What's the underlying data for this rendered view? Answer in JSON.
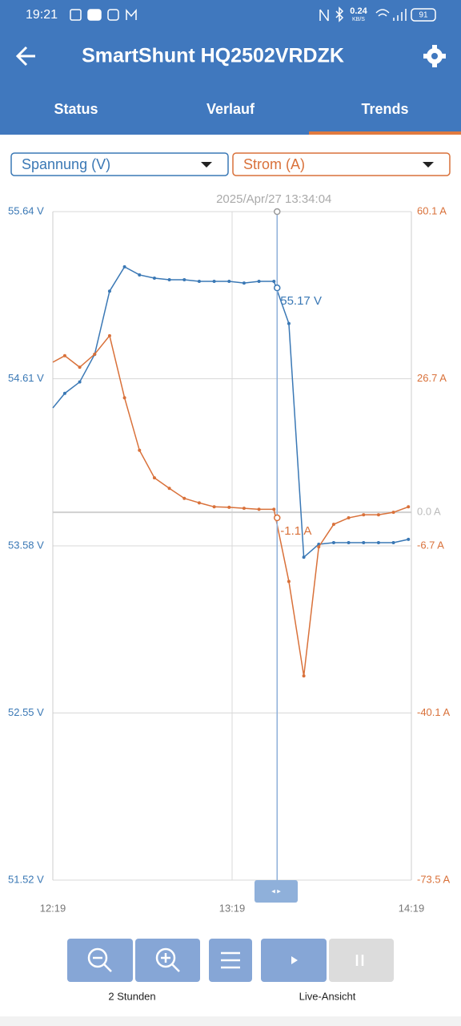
{
  "status_bar": {
    "time": "19:21",
    "speed": "0.24",
    "speed_unit": "KB/S",
    "battery": "91"
  },
  "app_bar": {
    "title": "SmartShunt HQ2502VRDZK"
  },
  "tabs": [
    "Status",
    "Verlauf",
    "Trends"
  ],
  "chart_data": {
    "type": "line",
    "x": [
      "12:19",
      "12:23",
      "12:28",
      "12:33",
      "12:38",
      "12:43",
      "12:48",
      "12:53",
      "12:58",
      "13:03",
      "13:08",
      "13:13",
      "13:18",
      "13:23",
      "13:28",
      "13:33",
      "13:38",
      "13:43",
      "13:48",
      "13:53",
      "13:58",
      "14:03",
      "14:08",
      "14:13",
      "14:18"
    ],
    "series": [
      {
        "name": "Spannung (V)",
        "color": "#3a78b5",
        "values": [
          54.43,
          54.52,
          54.59,
          54.76,
          55.15,
          55.3,
          55.25,
          55.23,
          55.22,
          55.22,
          55.21,
          55.21,
          55.21,
          55.2,
          55.21,
          55.21,
          54.95,
          53.51,
          53.59,
          53.6,
          53.6,
          53.6,
          53.6,
          53.6,
          53.62
        ]
      },
      {
        "name": "Strom (A)",
        "color": "#d9713a",
        "axis": "y2",
        "values": [
          30.0,
          31.3,
          29.0,
          31.6,
          35.3,
          22.9,
          12.4,
          6.9,
          4.8,
          2.8,
          1.9,
          1.1,
          1.0,
          0.8,
          0.6,
          0.6,
          -13.8,
          -32.7,
          -6.9,
          -2.4,
          -1.1,
          -0.5,
          -0.5,
          0.0,
          1.1
        ]
      }
    ],
    "xlim": [
      "12:19",
      "14:19"
    ],
    "xticks": [
      "12:19",
      "13:19",
      "14:19"
    ],
    "ylim": [
      51.52,
      55.64
    ],
    "yticks": [
      {
        "value": 55.64,
        "label": "55.64 V"
      },
      {
        "value": 54.61,
        "label": "54.61 V"
      },
      {
        "value": 53.58,
        "label": "53.58 V"
      },
      {
        "value": 52.55,
        "label": "52.55 V"
      },
      {
        "value": 51.52,
        "label": "51.52 V"
      }
    ],
    "y2lim": [
      -73.5,
      60.1
    ],
    "y2ticks": [
      {
        "value": 60.1,
        "label": "60.1 A"
      },
      {
        "value": 26.7,
        "label": "26.7 A"
      },
      {
        "value": 0,
        "label": "0.0 A"
      },
      {
        "value": -6.7,
        "label": "-6.7 A"
      },
      {
        "value": -40.1,
        "label": "-40.1 A"
      },
      {
        "value": -73.5,
        "label": "-73.5 A"
      }
    ],
    "grid": true,
    "cursor": {
      "label": "2025/Apr/27 13:34:04",
      "values": [
        55.17,
        -1.1
      ],
      "value_labels": [
        "55.17 V",
        "-1.1 A"
      ]
    }
  },
  "controls": {
    "zoom_label": "2 Stunden",
    "live_label": "Live-Ansicht"
  }
}
